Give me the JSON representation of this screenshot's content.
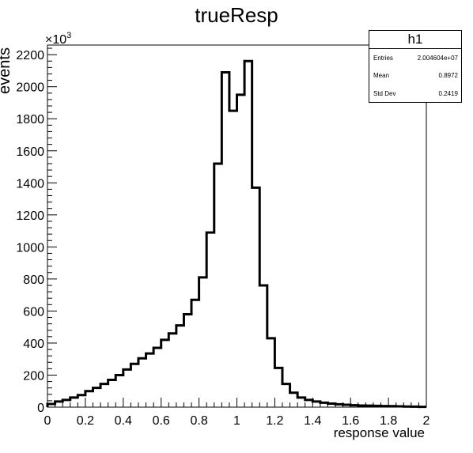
{
  "chart_data": {
    "type": "bar",
    "title": "trueResp",
    "xlabel": "response value",
    "ylabel": "events",
    "y_multiplier_label": "×10³",
    "y_exponent": "3",
    "xlim": [
      0,
      2
    ],
    "ylim": [
      0,
      2260
    ],
    "x_ticks": [
      "0",
      "0.2",
      "0.4",
      "0.6",
      "0.8",
      "1",
      "1.2",
      "1.4",
      "1.6",
      "1.8",
      "2"
    ],
    "y_ticks": [
      "0",
      "200",
      "400",
      "600",
      "800",
      "1000",
      "1200",
      "1400",
      "1600",
      "1800",
      "2000",
      "2200"
    ],
    "bin_width": 0.04,
    "bin_edges_start": 0,
    "values": [
      20,
      35,
      45,
      60,
      75,
      100,
      120,
      145,
      170,
      200,
      235,
      270,
      305,
      335,
      370,
      420,
      460,
      510,
      580,
      670,
      810,
      1090,
      1520,
      2090,
      1850,
      1950,
      2160,
      1370,
      760,
      430,
      245,
      145,
      90,
      60,
      45,
      35,
      28,
      22,
      18,
      15,
      12,
      10,
      9,
      8,
      7,
      6,
      5,
      4,
      3,
      2
    ],
    "legend": "none",
    "grid": false
  },
  "stats_box": {
    "name": "h1",
    "rows": [
      {
        "label": "Entries",
        "value": "2.004604e+07"
      },
      {
        "label": "Mean",
        "value": "0.8972"
      },
      {
        "label": "Std Dev",
        "value": "0.2419"
      }
    ]
  }
}
